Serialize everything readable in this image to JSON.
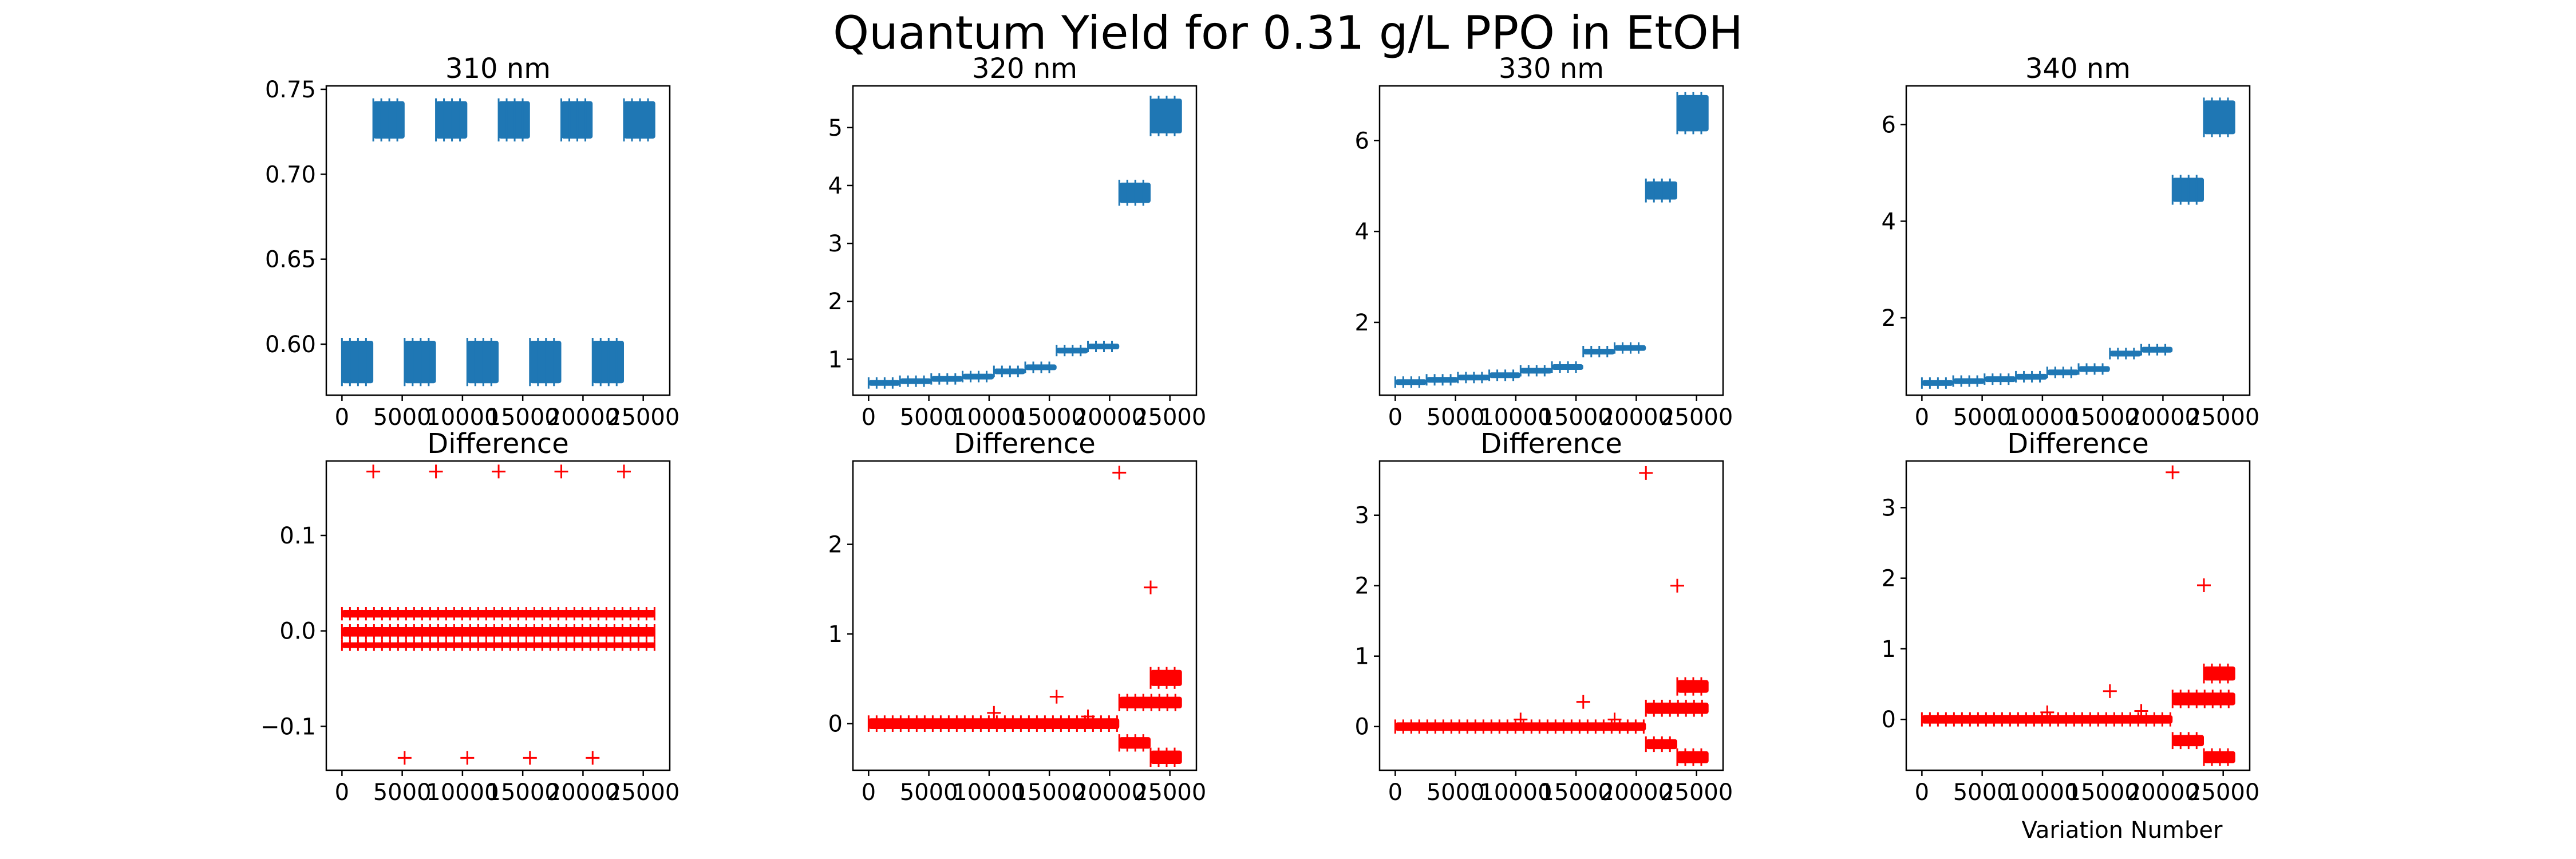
{
  "figure": {
    "title": "Quantum Yield for 0.31 g/L PPO in EtOH",
    "xlabel": "Variation Number",
    "colors": {
      "qy": "#1f77b4",
      "diff": "#ff0000",
      "axis": "#000000"
    }
  },
  "chart_data": [
    {
      "type": "scatter",
      "title": "310 nm",
      "marker": "+",
      "xlim": [
        -1300,
        27200
      ],
      "ylim": [
        0.57,
        0.752
      ],
      "xticks": [
        0,
        5000,
        10000,
        15000,
        20000,
        25000
      ],
      "xticklabels": [
        "0",
        "5000",
        "10000",
        "15000",
        "20000",
        "25000"
      ],
      "yticks": [
        0.6,
        0.65,
        0.7,
        0.75
      ],
      "yticklabels": [
        "0.60",
        "0.65",
        "0.70",
        "0.75"
      ],
      "bands": [
        {
          "x": [
            0,
            2600
          ],
          "y": [
            0.577,
            0.602
          ]
        },
        {
          "x": [
            2600,
            5200
          ],
          "y": [
            0.721,
            0.743
          ]
        },
        {
          "x": [
            5200,
            7800
          ],
          "y": [
            0.577,
            0.602
          ]
        },
        {
          "x": [
            7800,
            10400
          ],
          "y": [
            0.721,
            0.743
          ]
        },
        {
          "x": [
            10400,
            13000
          ],
          "y": [
            0.577,
            0.602
          ]
        },
        {
          "x": [
            13000,
            15600
          ],
          "y": [
            0.721,
            0.743
          ]
        },
        {
          "x": [
            15600,
            18200
          ],
          "y": [
            0.577,
            0.602
          ]
        },
        {
          "x": [
            18200,
            20800
          ],
          "y": [
            0.721,
            0.743
          ]
        },
        {
          "x": [
            20800,
            23400
          ],
          "y": [
            0.577,
            0.602
          ]
        },
        {
          "x": [
            23400,
            26000
          ],
          "y": [
            0.721,
            0.743
          ]
        }
      ]
    },
    {
      "type": "scatter",
      "title": "320 nm",
      "marker": "+",
      "xlim": [
        -1300,
        27200
      ],
      "ylim": [
        0.38,
        5.72
      ],
      "xticks": [
        0,
        5000,
        10000,
        15000,
        20000,
        25000
      ],
      "xticklabels": [
        "0",
        "5000",
        "10000",
        "15000",
        "20000",
        "25000"
      ],
      "yticks": [
        1,
        2,
        3,
        4,
        5
      ],
      "yticklabels": [
        "1",
        "2",
        "3",
        "4",
        "5"
      ],
      "bands": [
        {
          "x": [
            0,
            2600
          ],
          "y": [
            0.57,
            0.64
          ]
        },
        {
          "x": [
            2600,
            5200
          ],
          "y": [
            0.6,
            0.67
          ]
        },
        {
          "x": [
            5200,
            7800
          ],
          "y": [
            0.64,
            0.71
          ]
        },
        {
          "x": [
            7800,
            10400
          ],
          "y": [
            0.68,
            0.75
          ]
        },
        {
          "x": [
            10400,
            13000
          ],
          "y": [
            0.76,
            0.84
          ]
        },
        {
          "x": [
            13000,
            15600
          ],
          "y": [
            0.83,
            0.91
          ]
        },
        {
          "x": [
            15600,
            18200
          ],
          "y": [
            1.1,
            1.2
          ]
        },
        {
          "x": [
            18200,
            20800
          ],
          "y": [
            1.18,
            1.27
          ]
        },
        {
          "x": [
            20800,
            23400
          ],
          "y": [
            3.7,
            4.05
          ]
        },
        {
          "x": [
            23400,
            26000
          ],
          "y": [
            4.9,
            5.5
          ]
        }
      ]
    },
    {
      "type": "scatter",
      "title": "330 nm",
      "marker": "+",
      "xlim": [
        -1300,
        27200
      ],
      "ylim": [
        0.4,
        7.2
      ],
      "xticks": [
        0,
        5000,
        10000,
        15000,
        20000,
        25000
      ],
      "xticklabels": [
        "0",
        "5000",
        "10000",
        "15000",
        "20000",
        "25000"
      ],
      "yticks": [
        2,
        4,
        6
      ],
      "yticklabels": [
        "2",
        "4",
        "6"
      ],
      "bands": [
        {
          "x": [
            0,
            2600
          ],
          "y": [
            0.65,
            0.75
          ]
        },
        {
          "x": [
            2600,
            5200
          ],
          "y": [
            0.7,
            0.8
          ]
        },
        {
          "x": [
            5200,
            7800
          ],
          "y": [
            0.75,
            0.85
          ]
        },
        {
          "x": [
            7800,
            10400
          ],
          "y": [
            0.8,
            0.9
          ]
        },
        {
          "x": [
            10400,
            13000
          ],
          "y": [
            0.9,
            1.0
          ]
        },
        {
          "x": [
            13000,
            15600
          ],
          "y": [
            0.98,
            1.08
          ]
        },
        {
          "x": [
            15600,
            18200
          ],
          "y": [
            1.3,
            1.42
          ]
        },
        {
          "x": [
            18200,
            20800
          ],
          "y": [
            1.38,
            1.5
          ]
        },
        {
          "x": [
            20800,
            23400
          ],
          "y": [
            4.7,
            5.1
          ]
        },
        {
          "x": [
            23400,
            26000
          ],
          "y": [
            6.2,
            7.0
          ]
        }
      ]
    },
    {
      "type": "scatter",
      "title": "340 nm",
      "marker": "+",
      "xlim": [
        -1300,
        27200
      ],
      "ylim": [
        0.4,
        6.8
      ],
      "xticks": [
        0,
        5000,
        10000,
        15000,
        20000,
        25000
      ],
      "xticklabels": [
        "0",
        "5000",
        "10000",
        "15000",
        "20000",
        "25000"
      ],
      "yticks": [
        2,
        4,
        6
      ],
      "yticklabels": [
        "2",
        "4",
        "6"
      ],
      "bands": [
        {
          "x": [
            0,
            2600
          ],
          "y": [
            0.62,
            0.71
          ]
        },
        {
          "x": [
            2600,
            5200
          ],
          "y": [
            0.66,
            0.75
          ]
        },
        {
          "x": [
            5200,
            7800
          ],
          "y": [
            0.7,
            0.79
          ]
        },
        {
          "x": [
            7800,
            10400
          ],
          "y": [
            0.75,
            0.84
          ]
        },
        {
          "x": [
            10400,
            13000
          ],
          "y": [
            0.83,
            0.93
          ]
        },
        {
          "x": [
            13000,
            15600
          ],
          "y": [
            0.9,
            1.0
          ]
        },
        {
          "x": [
            15600,
            18200
          ],
          "y": [
            1.2,
            1.32
          ]
        },
        {
          "x": [
            18200,
            20800
          ],
          "y": [
            1.28,
            1.4
          ]
        },
        {
          "x": [
            20800,
            23400
          ],
          "y": [
            4.4,
            4.9
          ]
        },
        {
          "x": [
            23400,
            26000
          ],
          "y": [
            5.8,
            6.5
          ]
        }
      ]
    },
    {
      "type": "scatter",
      "title": "Difference",
      "marker": "+",
      "xlim": [
        -1300,
        27200
      ],
      "ylim": [
        -0.146,
        0.178
      ],
      "xticks": [
        0,
        5000,
        10000,
        15000,
        20000,
        25000
      ],
      "xticklabels": [
        "0",
        "5000",
        "10000",
        "15000",
        "20000",
        "25000"
      ],
      "yticks": [
        -0.1,
        0.0,
        0.1
      ],
      "yticklabels": [
        "−0.1",
        "0.0",
        "0.1"
      ],
      "bands": [
        {
          "x": [
            0,
            26000
          ],
          "y": [
            0.014,
            0.022
          ]
        },
        {
          "x": [
            0,
            26000
          ],
          "y": [
            -0.006,
            0.004
          ]
        },
        {
          "x": [
            0,
            26000
          ],
          "y": [
            -0.018,
            -0.012
          ]
        }
      ],
      "points": [
        {
          "x": 2600,
          "y": 0.167
        },
        {
          "x": 7800,
          "y": 0.167
        },
        {
          "x": 13000,
          "y": 0.167
        },
        {
          "x": 18200,
          "y": 0.167
        },
        {
          "x": 23400,
          "y": 0.167
        },
        {
          "x": 5200,
          "y": -0.133
        },
        {
          "x": 10400,
          "y": -0.133
        },
        {
          "x": 15600,
          "y": -0.133
        },
        {
          "x": 20800,
          "y": -0.133
        }
      ]
    },
    {
      "type": "scatter",
      "title": "Difference",
      "marker": "+",
      "xlim": [
        -1300,
        27200
      ],
      "ylim": [
        -0.52,
        2.93
      ],
      "xticks": [
        0,
        5000,
        10000,
        15000,
        20000,
        25000
      ],
      "xticklabels": [
        "0",
        "5000",
        "10000",
        "15000",
        "20000",
        "25000"
      ],
      "yticks": [
        0,
        1,
        2
      ],
      "yticklabels": [
        "0",
        "1",
        "2"
      ],
      "bands": [
        {
          "x": [
            0,
            20800
          ],
          "y": [
            -0.06,
            0.06
          ]
        },
        {
          "x": [
            20800,
            23400
          ],
          "y": [
            -0.28,
            -0.15
          ]
        },
        {
          "x": [
            20800,
            26000
          ],
          "y": [
            0.17,
            0.3
          ]
        },
        {
          "x": [
            23400,
            26000
          ],
          "y": [
            -0.45,
            -0.3
          ]
        },
        {
          "x": [
            23400,
            26000
          ],
          "y": [
            0.42,
            0.6
          ]
        }
      ],
      "points": [
        {
          "x": 20800,
          "y": 2.8
        },
        {
          "x": 23400,
          "y": 1.52
        },
        {
          "x": 15600,
          "y": 0.3
        },
        {
          "x": 10400,
          "y": 0.12
        },
        {
          "x": 18200,
          "y": 0.08
        }
      ]
    },
    {
      "type": "scatter",
      "title": "Difference",
      "marker": "+",
      "xlim": [
        -1300,
        27200
      ],
      "ylim": [
        -0.62,
        3.77
      ],
      "xticks": [
        0,
        5000,
        10000,
        15000,
        20000,
        25000
      ],
      "xticklabels": [
        "0",
        "5000",
        "10000",
        "15000",
        "20000",
        "25000"
      ],
      "yticks": [
        0,
        1,
        2,
        3
      ],
      "yticklabels": [
        "0",
        "1",
        "2",
        "3"
      ],
      "bands": [
        {
          "x": [
            0,
            20800
          ],
          "y": [
            -0.06,
            0.06
          ]
        },
        {
          "x": [
            20800,
            23400
          ],
          "y": [
            -0.32,
            -0.18
          ]
        },
        {
          "x": [
            20800,
            26000
          ],
          "y": [
            0.18,
            0.34
          ]
        },
        {
          "x": [
            23400,
            26000
          ],
          "y": [
            -0.52,
            -0.35
          ]
        },
        {
          "x": [
            23400,
            26000
          ],
          "y": [
            0.48,
            0.66
          ]
        }
      ],
      "points": [
        {
          "x": 20800,
          "y": 3.6
        },
        {
          "x": 23400,
          "y": 2.0
        },
        {
          "x": 15600,
          "y": 0.35
        },
        {
          "x": 10400,
          "y": 0.1
        },
        {
          "x": 18200,
          "y": 0.1
        }
      ]
    },
    {
      "type": "scatter",
      "title": "Difference",
      "marker": "+",
      "xlim": [
        -1300,
        27200
      ],
      "ylim": [
        -0.72,
        3.66
      ],
      "xticks": [
        0,
        5000,
        10000,
        15000,
        20000,
        25000
      ],
      "xticklabels": [
        "0",
        "5000",
        "10000",
        "15000",
        "20000",
        "25000"
      ],
      "yticks": [
        0,
        1,
        2,
        3
      ],
      "yticklabels": [
        "0",
        "1",
        "2",
        "3"
      ],
      "bands": [
        {
          "x": [
            0,
            20800
          ],
          "y": [
            -0.06,
            0.06
          ]
        },
        {
          "x": [
            20800,
            23400
          ],
          "y": [
            -0.38,
            -0.22
          ]
        },
        {
          "x": [
            20800,
            26000
          ],
          "y": [
            0.2,
            0.38
          ]
        },
        {
          "x": [
            23400,
            26000
          ],
          "y": [
            -0.62,
            -0.45
          ]
        },
        {
          "x": [
            23400,
            26000
          ],
          "y": [
            0.55,
            0.75
          ]
        }
      ],
      "points": [
        {
          "x": 20800,
          "y": 3.5
        },
        {
          "x": 23400,
          "y": 1.9
        },
        {
          "x": 15600,
          "y": 0.4
        },
        {
          "x": 10400,
          "y": 0.1
        },
        {
          "x": 18200,
          "y": 0.12
        }
      ]
    }
  ]
}
